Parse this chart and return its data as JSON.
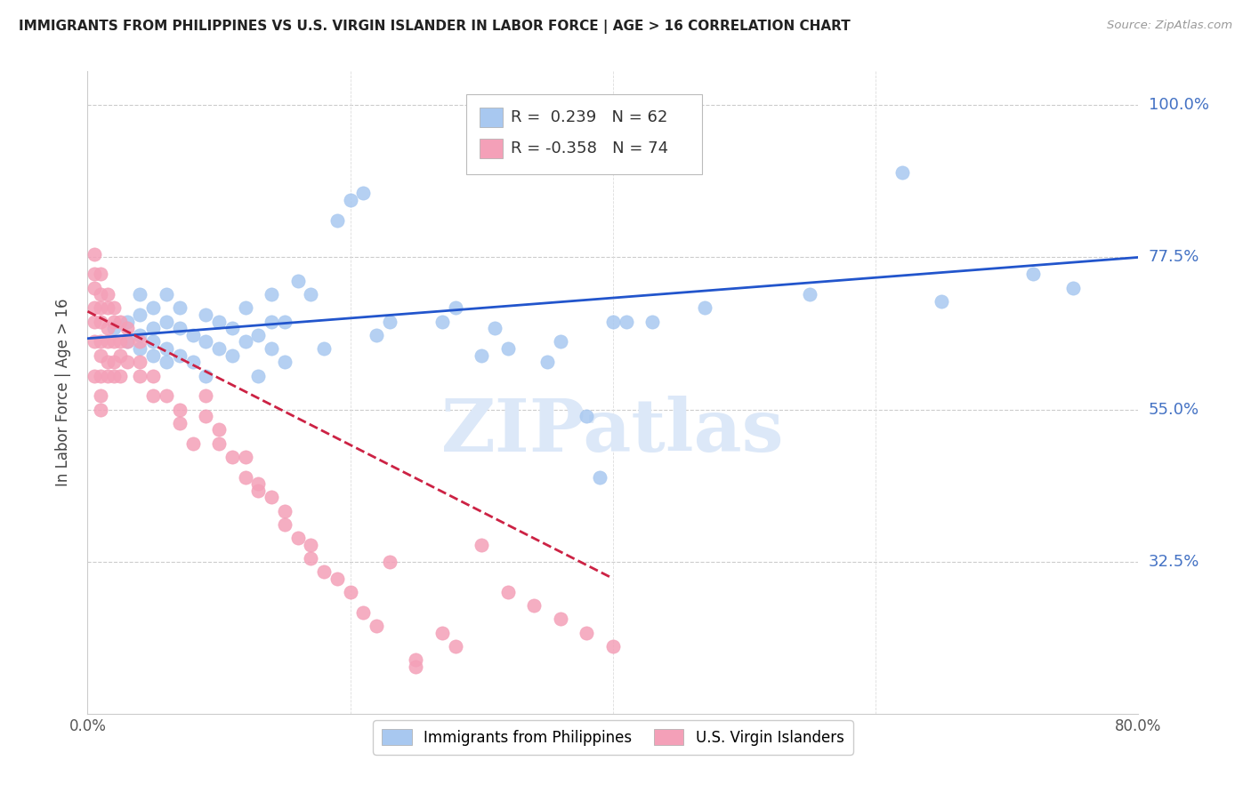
{
  "title": "IMMIGRANTS FROM PHILIPPINES VS U.S. VIRGIN ISLANDER IN LABOR FORCE | AGE > 16 CORRELATION CHART",
  "source": "Source: ZipAtlas.com",
  "ylabel_label": "In Labor Force | Age > 16",
  "xlim": [
    0.0,
    0.8
  ],
  "ylim": [
    0.1,
    1.05
  ],
  "ytick_vals": [
    0.325,
    0.55,
    0.775,
    1.0
  ],
  "ytick_labels": [
    "32.5%",
    "55.0%",
    "77.5%",
    "100.0%"
  ],
  "xtick_vals": [
    0.0,
    0.8
  ],
  "xtick_labels": [
    "0.0%",
    "80.0%"
  ],
  "blue_R": 0.239,
  "blue_N": 62,
  "pink_R": -0.358,
  "pink_N": 74,
  "blue_color": "#a8c8f0",
  "pink_color": "#f4a0b8",
  "blue_line_color": "#2255cc",
  "pink_line_color": "#cc2244",
  "legend_label_blue": "Immigrants from Philippines",
  "legend_label_pink": "U.S. Virgin Islanders",
  "watermark": "ZIPatlas",
  "watermark_color": "#dce8f8",
  "blue_scatter_x": [
    0.02,
    0.03,
    0.03,
    0.04,
    0.04,
    0.04,
    0.04,
    0.05,
    0.05,
    0.05,
    0.05,
    0.06,
    0.06,
    0.06,
    0.06,
    0.07,
    0.07,
    0.07,
    0.08,
    0.08,
    0.09,
    0.09,
    0.09,
    0.1,
    0.1,
    0.11,
    0.11,
    0.12,
    0.12,
    0.13,
    0.13,
    0.14,
    0.14,
    0.14,
    0.15,
    0.15,
    0.16,
    0.17,
    0.18,
    0.19,
    0.2,
    0.21,
    0.22,
    0.23,
    0.27,
    0.28,
    0.3,
    0.31,
    0.32,
    0.35,
    0.36,
    0.38,
    0.39,
    0.4,
    0.41,
    0.43,
    0.47,
    0.55,
    0.62,
    0.65,
    0.72,
    0.75
  ],
  "blue_scatter_y": [
    0.67,
    0.68,
    0.65,
    0.64,
    0.66,
    0.69,
    0.72,
    0.63,
    0.65,
    0.67,
    0.7,
    0.62,
    0.64,
    0.68,
    0.72,
    0.63,
    0.67,
    0.7,
    0.62,
    0.66,
    0.6,
    0.65,
    0.69,
    0.64,
    0.68,
    0.63,
    0.67,
    0.65,
    0.7,
    0.6,
    0.66,
    0.64,
    0.68,
    0.72,
    0.62,
    0.68,
    0.74,
    0.72,
    0.64,
    0.83,
    0.86,
    0.87,
    0.66,
    0.68,
    0.68,
    0.7,
    0.63,
    0.67,
    0.64,
    0.62,
    0.65,
    0.54,
    0.45,
    0.68,
    0.68,
    0.68,
    0.7,
    0.72,
    0.9,
    0.71,
    0.75,
    0.73
  ],
  "pink_scatter_x": [
    0.005,
    0.005,
    0.005,
    0.005,
    0.005,
    0.005,
    0.005,
    0.01,
    0.01,
    0.01,
    0.01,
    0.01,
    0.01,
    0.01,
    0.01,
    0.01,
    0.015,
    0.015,
    0.015,
    0.015,
    0.015,
    0.015,
    0.02,
    0.02,
    0.02,
    0.02,
    0.02,
    0.025,
    0.025,
    0.025,
    0.025,
    0.03,
    0.03,
    0.03,
    0.04,
    0.04,
    0.04,
    0.05,
    0.05,
    0.06,
    0.07,
    0.07,
    0.08,
    0.09,
    0.09,
    0.1,
    0.1,
    0.11,
    0.12,
    0.12,
    0.13,
    0.14,
    0.15,
    0.15,
    0.16,
    0.17,
    0.17,
    0.18,
    0.19,
    0.2,
    0.21,
    0.22,
    0.23,
    0.25,
    0.27,
    0.28,
    0.3,
    0.32,
    0.34,
    0.36,
    0.38,
    0.4,
    0.13,
    0.25
  ],
  "pink_scatter_y": [
    0.78,
    0.75,
    0.73,
    0.7,
    0.68,
    0.65,
    0.6,
    0.75,
    0.72,
    0.7,
    0.68,
    0.65,
    0.63,
    0.6,
    0.57,
    0.55,
    0.72,
    0.7,
    0.67,
    0.65,
    0.62,
    0.6,
    0.7,
    0.68,
    0.65,
    0.62,
    0.6,
    0.68,
    0.65,
    0.63,
    0.6,
    0.67,
    0.65,
    0.62,
    0.65,
    0.62,
    0.6,
    0.6,
    0.57,
    0.57,
    0.55,
    0.53,
    0.5,
    0.57,
    0.54,
    0.52,
    0.5,
    0.48,
    0.48,
    0.45,
    0.43,
    0.42,
    0.4,
    0.38,
    0.36,
    0.35,
    0.33,
    0.31,
    0.3,
    0.28,
    0.25,
    0.23,
    0.325,
    0.18,
    0.22,
    0.2,
    0.35,
    0.28,
    0.26,
    0.24,
    0.22,
    0.2,
    0.44,
    0.17
  ],
  "blue_line_x": [
    0.0,
    0.8
  ],
  "blue_line_y_start": 0.655,
  "blue_line_y_end": 0.775,
  "pink_line_x": [
    0.0,
    0.4
  ],
  "pink_line_y_start": 0.695,
  "pink_line_y_end": 0.3
}
